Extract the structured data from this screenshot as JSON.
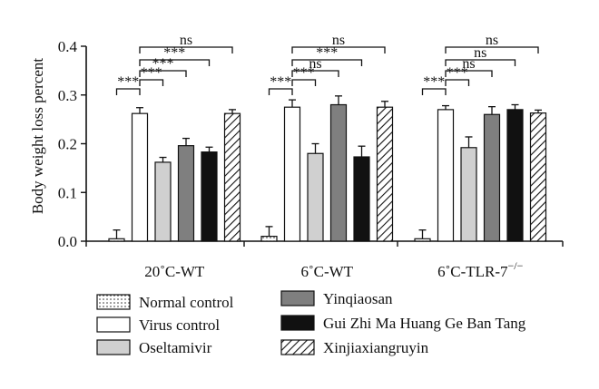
{
  "chart_data": {
    "type": "bar",
    "ylabel": "Body weight loss percent",
    "ylim": [
      0,
      0.4
    ],
    "yticks": [
      "0.0",
      "0.1",
      "0.2",
      "0.3",
      "0.4"
    ],
    "categories": [
      {
        "label": "20°C-WT",
        "text": "20˚C-WT"
      },
      {
        "label": "6°C-WT",
        "text": "6˚C-WT"
      },
      {
        "label": "6°C-TLR-7−/−",
        "text": "6˚C-TLR-7",
        "sup": "−/−"
      }
    ],
    "series": [
      {
        "name": "Normal control",
        "values": [
          0.005,
          0.01,
          0.005
        ],
        "errors": [
          0.018,
          0.02,
          0.018
        ],
        "fill": "dots"
      },
      {
        "name": "Virus control",
        "values": [
          0.262,
          0.275,
          0.27
        ],
        "errors": [
          0.012,
          0.015,
          0.008
        ],
        "fill": "#ffffff"
      },
      {
        "name": "Oseltamivir",
        "values": [
          0.162,
          0.18,
          0.192
        ],
        "errors": [
          0.01,
          0.02,
          0.022
        ],
        "fill": "#d0d0d0"
      },
      {
        "name": "Yinqiaosan",
        "values": [
          0.196,
          0.28,
          0.26
        ],
        "errors": [
          0.015,
          0.018,
          0.016
        ],
        "fill": "#7f7f7f"
      },
      {
        "name": "Gui Zhi Ma Huang Ge Ban Tang",
        "values": [
          0.183,
          0.173,
          0.27
        ],
        "errors": [
          0.01,
          0.022,
          0.01
        ],
        "fill": "#111111"
      },
      {
        "name": "Xinjiaxiangruyin",
        "values": [
          0.262,
          0.275,
          0.263
        ],
        "errors": [
          0.008,
          0.012,
          0.006
        ],
        "fill": "hatch"
      }
    ],
    "significance": [
      {
        "group": 0,
        "from": 0,
        "to": 1,
        "label": "***"
      },
      {
        "group": 0,
        "from": 1,
        "to": 2,
        "label": "***"
      },
      {
        "group": 0,
        "from": 1,
        "to": 3,
        "label": "***"
      },
      {
        "group": 0,
        "from": 1,
        "to": 4,
        "label": "***"
      },
      {
        "group": 0,
        "from": 1,
        "to": 5,
        "label": "ns"
      },
      {
        "group": 1,
        "from": 0,
        "to": 1,
        "label": "***"
      },
      {
        "group": 1,
        "from": 1,
        "to": 2,
        "label": "***"
      },
      {
        "group": 1,
        "from": 1,
        "to": 3,
        "label": "ns"
      },
      {
        "group": 1,
        "from": 1,
        "to": 4,
        "label": "***"
      },
      {
        "group": 1,
        "from": 1,
        "to": 5,
        "label": "ns"
      },
      {
        "group": 2,
        "from": 0,
        "to": 1,
        "label": "***"
      },
      {
        "group": 2,
        "from": 1,
        "to": 2,
        "label": "***"
      },
      {
        "group": 2,
        "from": 1,
        "to": 3,
        "label": "ns"
      },
      {
        "group": 2,
        "from": 1,
        "to": 4,
        "label": "ns"
      },
      {
        "group": 2,
        "from": 1,
        "to": 5,
        "label": "ns"
      }
    ],
    "legend": {
      "placement": "bottom",
      "entries": [
        "Normal control",
        "Virus control",
        "Oseltamivir",
        "Yinqiaosan",
        "Gui Zhi Ma Huang Ge Ban Tang",
        "Xinjiaxiangruyin"
      ]
    },
    "grid": false
  }
}
